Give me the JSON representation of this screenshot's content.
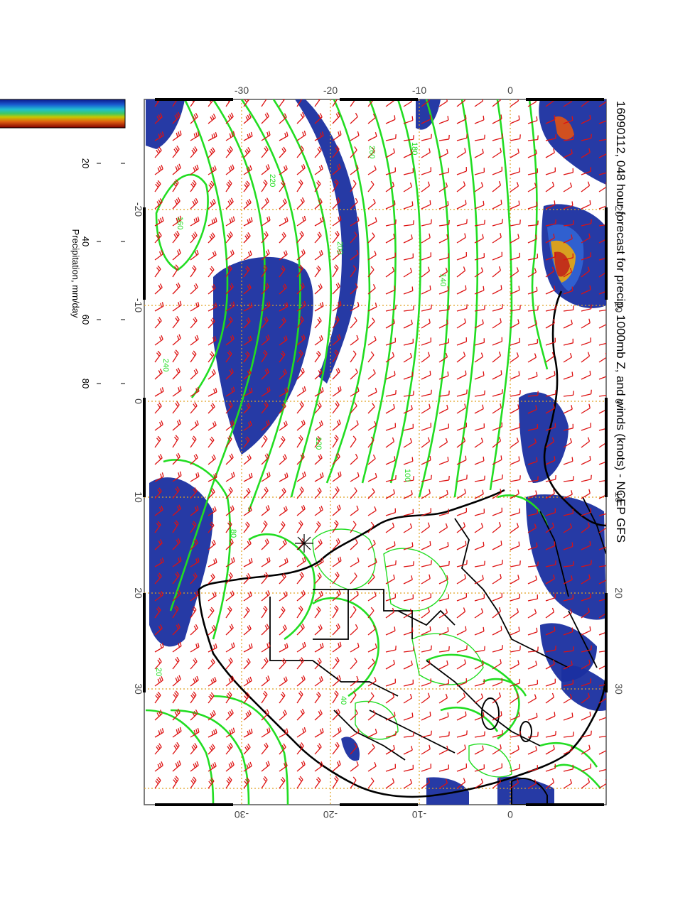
{
  "title": "16090112, 048 hour forecast for precip, 1000mb Z, and winds (knots) - NCEP GFS",
  "colorbar": {
    "label": "Precipitation, mm/day",
    "ticks": [
      "20",
      "40",
      "60",
      "80"
    ]
  },
  "map_ticks": {
    "longitude_labels": [
      "-20",
      "-10",
      "0",
      "10",
      "20",
      "30"
    ],
    "latitude_labels": [
      "-30",
      "-20",
      "-10",
      "0"
    ]
  },
  "contour_labels": [
    "260",
    "220",
    "200",
    "180",
    "160",
    "140",
    "120",
    "100",
    "80",
    "40",
    "240",
    "20"
  ],
  "map_layers": {
    "precip_color": "#1a2fa0",
    "precip_heavy_color": "#c2321a",
    "contour_color": "#22dd22",
    "wind_barb_color": "#dd1111",
    "coastline_color": "#000000",
    "grid_color": "#e0a020"
  }
}
